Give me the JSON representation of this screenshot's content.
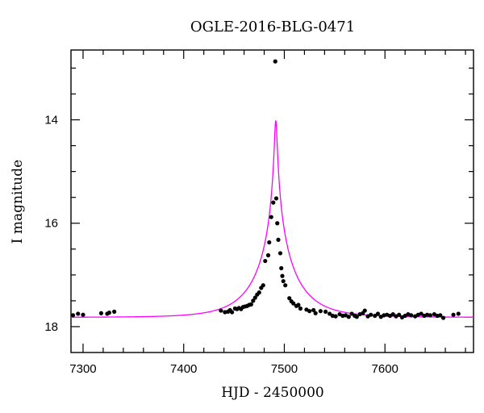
{
  "chart_data": {
    "type": "scatter",
    "title": "OGLE-2016-BLG-0471",
    "xlabel": "HJD - 2450000",
    "ylabel": "I magnitude",
    "xlim": [
      7288,
      7688
    ],
    "ylim": [
      18.5,
      12.65
    ],
    "y_inverted": true,
    "grid": false,
    "x_ticks": [
      7300,
      7400,
      7500,
      7600
    ],
    "y_ticks": [
      14,
      16,
      18
    ],
    "colors": {
      "points": "#000000",
      "model": "#ff00ff",
      "axes": "#000000"
    },
    "series": [],
    "points": [
      [
        7290,
        17.78
      ],
      [
        7295,
        17.75
      ],
      [
        7300,
        17.77
      ],
      [
        7318,
        17.74
      ],
      [
        7324,
        17.75
      ],
      [
        7326,
        17.73
      ],
      [
        7331,
        17.71
      ],
      [
        7437,
        17.69
      ],
      [
        7441,
        17.72
      ],
      [
        7444,
        17.71
      ],
      [
        7446,
        17.68
      ],
      [
        7448,
        17.72
      ],
      [
        7451,
        17.65
      ],
      [
        7453,
        17.66
      ],
      [
        7455,
        17.64
      ],
      [
        7457,
        17.66
      ],
      [
        7459,
        17.62
      ],
      [
        7461,
        17.61
      ],
      [
        7463,
        17.6
      ],
      [
        7465,
        17.58
      ],
      [
        7467,
        17.57
      ],
      [
        7469,
        17.5
      ],
      [
        7471,
        17.44
      ],
      [
        7473,
        17.38
      ],
      [
        7475,
        17.34
      ],
      [
        7477,
        17.25
      ],
      [
        7479,
        17.2
      ],
      [
        7481,
        16.73
      ],
      [
        7484,
        16.62
      ],
      [
        7485,
        16.37
      ],
      [
        7487,
        15.88
      ],
      [
        7489,
        15.6
      ],
      [
        7491,
        12.87
      ],
      [
        7492,
        15.52
      ],
      [
        7493,
        16.0
      ],
      [
        7494,
        16.32
      ],
      [
        7496,
        16.58
      ],
      [
        7497,
        16.87
      ],
      [
        7498,
        17.02
      ],
      [
        7499,
        17.12
      ],
      [
        7501,
        17.2
      ],
      [
        7505,
        17.45
      ],
      [
        7507,
        17.51
      ],
      [
        7509,
        17.55
      ],
      [
        7512,
        17.6
      ],
      [
        7514,
        17.58
      ],
      [
        7516,
        17.65
      ],
      [
        7522,
        17.67
      ],
      [
        7525,
        17.7
      ],
      [
        7529,
        17.68
      ],
      [
        7531,
        17.74
      ],
      [
        7536,
        17.7
      ],
      [
        7541,
        17.71
      ],
      [
        7545,
        17.75
      ],
      [
        7548,
        17.79
      ],
      [
        7551,
        17.8
      ],
      [
        7555,
        17.76
      ],
      [
        7558,
        17.79
      ],
      [
        7561,
        17.78
      ],
      [
        7564,
        17.81
      ],
      [
        7567,
        17.75
      ],
      [
        7570,
        17.79
      ],
      [
        7572,
        17.81
      ],
      [
        7575,
        17.76
      ],
      [
        7578,
        17.74
      ],
      [
        7580,
        17.69
      ],
      [
        7583,
        17.8
      ],
      [
        7586,
        17.77
      ],
      [
        7590,
        17.79
      ],
      [
        7593,
        17.75
      ],
      [
        7596,
        17.81
      ],
      [
        7599,
        17.78
      ],
      [
        7602,
        17.77
      ],
      [
        7605,
        17.79
      ],
      [
        7608,
        17.76
      ],
      [
        7611,
        17.8
      ],
      [
        7614,
        17.77
      ],
      [
        7617,
        17.82
      ],
      [
        7620,
        17.79
      ],
      [
        7623,
        17.76
      ],
      [
        7626,
        17.78
      ],
      [
        7630,
        17.8
      ],
      [
        7633,
        17.77
      ],
      [
        7636,
        17.75
      ],
      [
        7639,
        17.79
      ],
      [
        7642,
        17.77
      ],
      [
        7645,
        17.78
      ],
      [
        7649,
        17.76
      ],
      [
        7652,
        17.79
      ],
      [
        7655,
        17.78
      ],
      [
        7658,
        17.83
      ],
      [
        7668,
        17.77
      ],
      [
        7673,
        17.75
      ]
    ],
    "model": {
      "t0": 7491.5,
      "u0": 0.03,
      "tE": 40,
      "I_base": 17.82
    }
  }
}
